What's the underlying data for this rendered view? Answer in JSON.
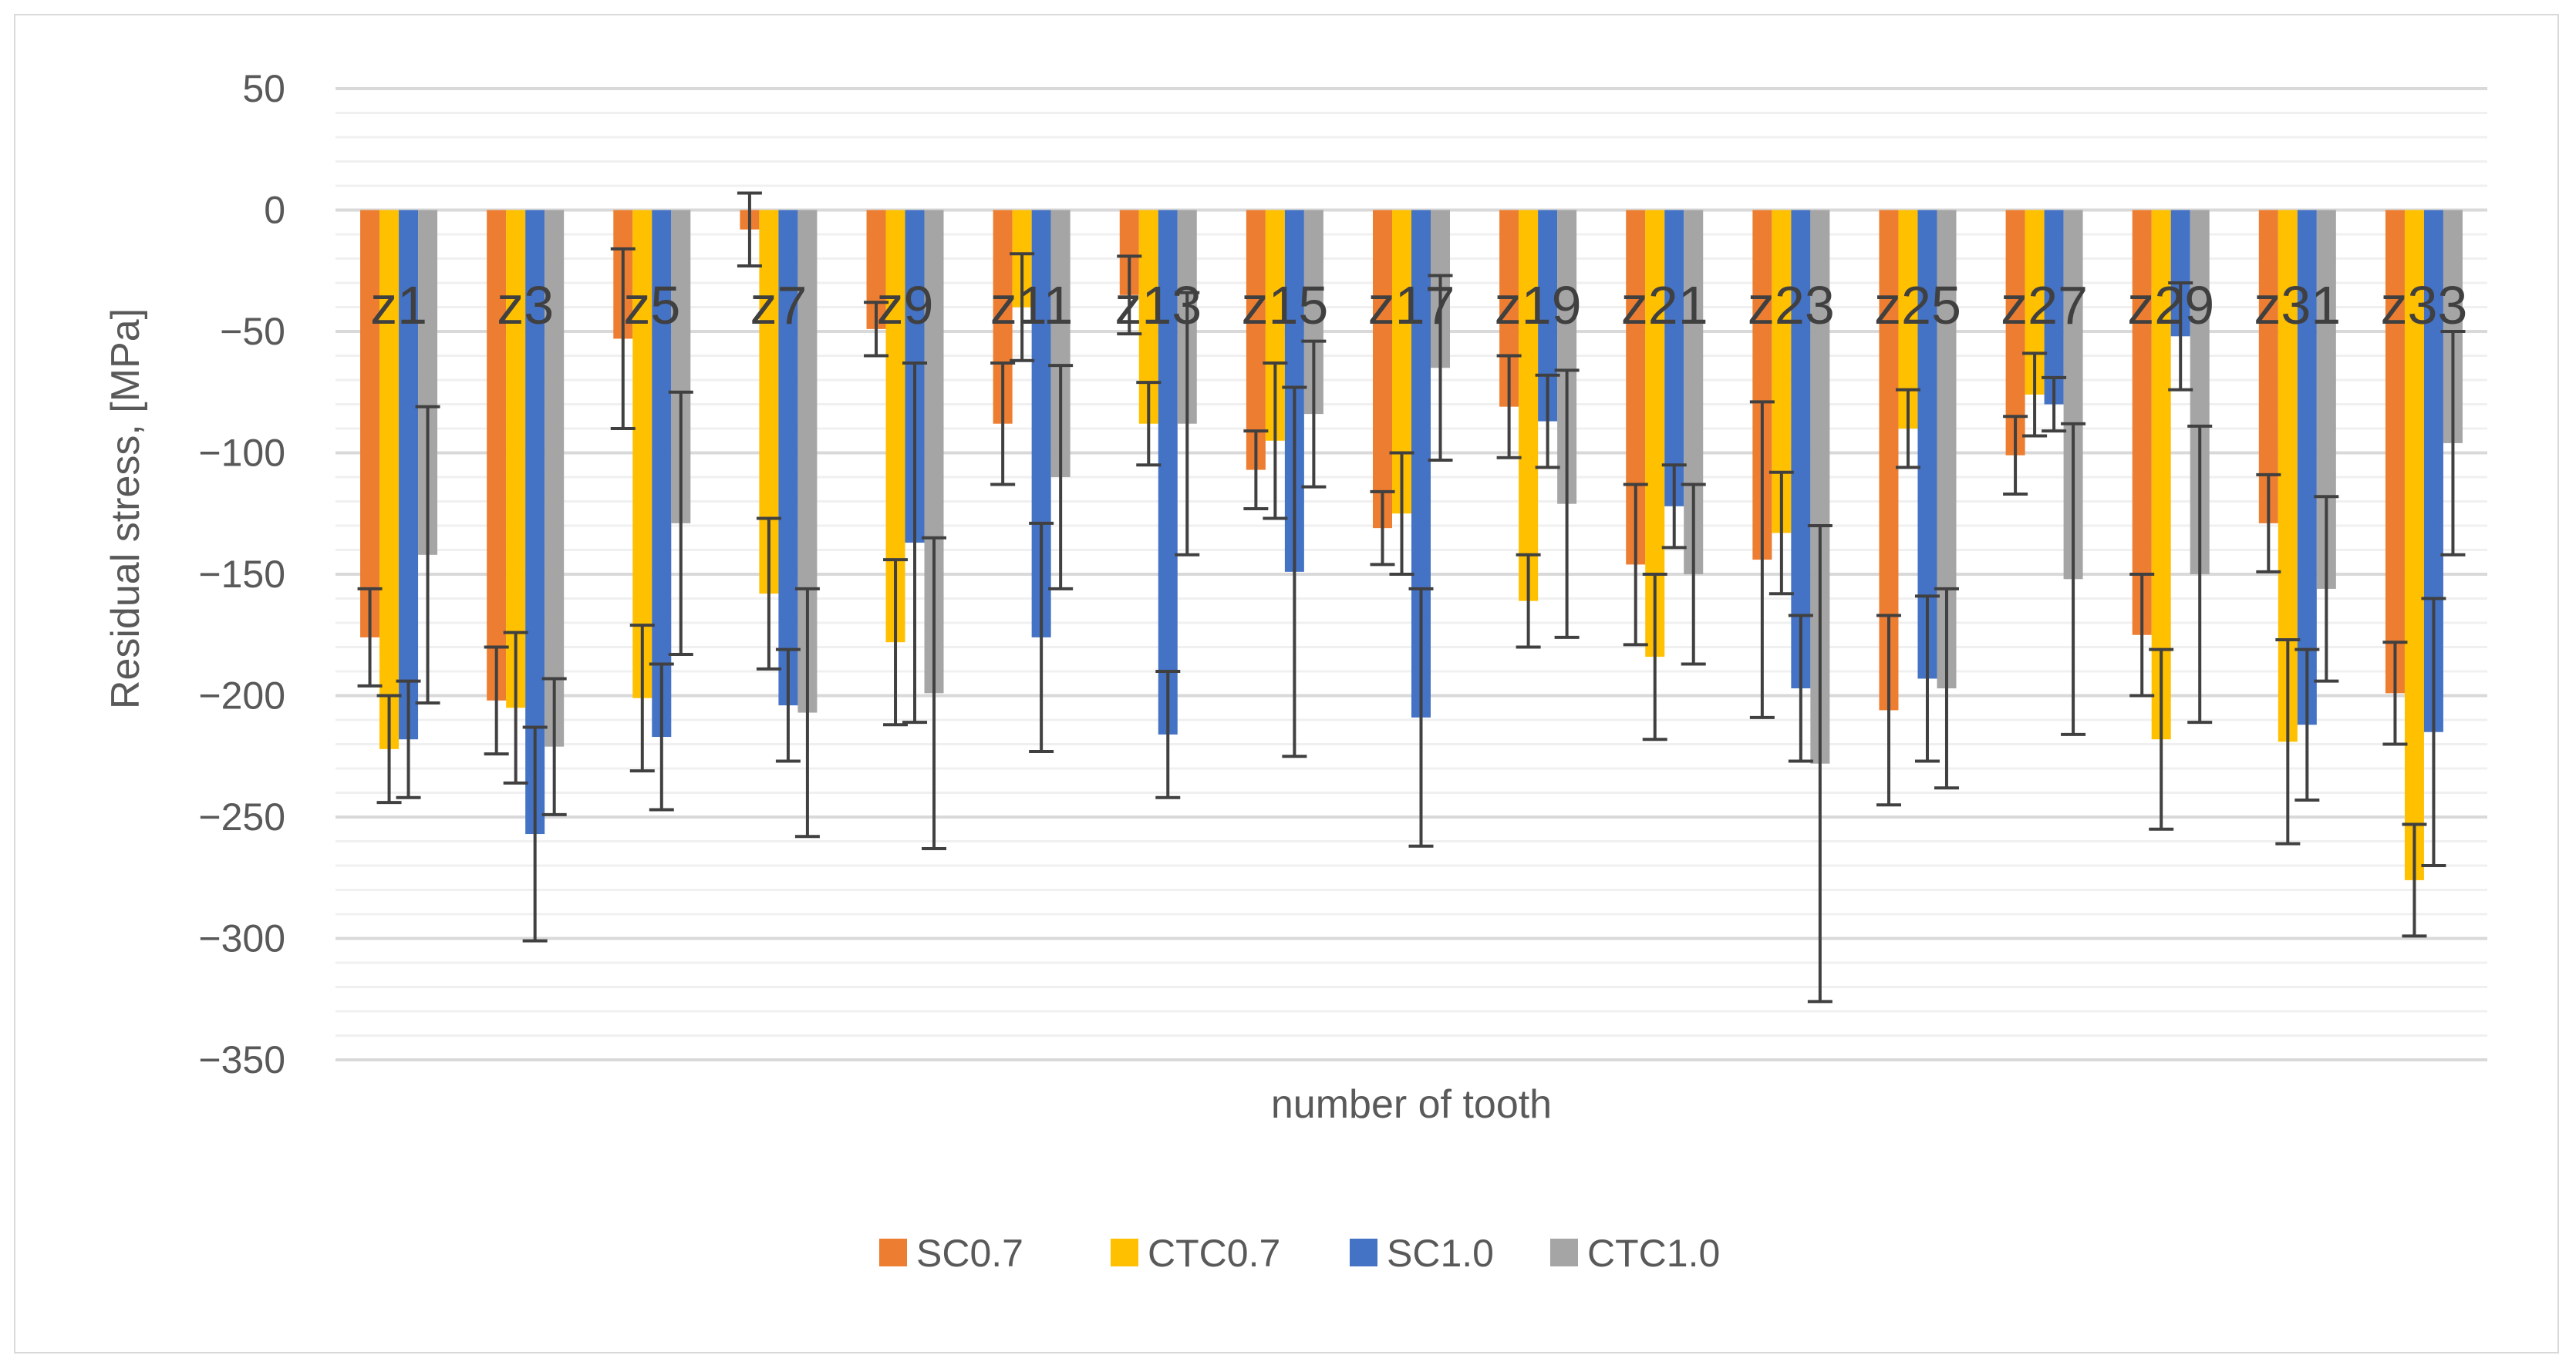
{
  "chart_data": {
    "type": "bar",
    "title": "",
    "xlabel": "number of tooth",
    "ylabel": "Residual stress, [MPa]",
    "ylim": [
      -350,
      50
    ],
    "yticks": [
      50,
      0,
      -50,
      -100,
      -150,
      -200,
      -250,
      -300,
      -350
    ],
    "ytick_labels": [
      "50",
      "0",
      "−50",
      "−100",
      "−150",
      "−200",
      "−250",
      "−300",
      "−350"
    ],
    "minor_grid_step": 10,
    "legend_position": "bottom",
    "categories": [
      "z1",
      "z3",
      "z5",
      "z7",
      "z9",
      "z11",
      "z13",
      "z15",
      "z17",
      "z19",
      "z21",
      "z23",
      "z25",
      "z27",
      "z29",
      "z31",
      "z33"
    ],
    "series": [
      {
        "name": "SC0.7",
        "color": "#ED7D31",
        "values": [
          -176,
          -202,
          -53,
          -8,
          -49,
          -88,
          -35,
          -107,
          -131,
          -81,
          -146,
          -144,
          -206,
          -101,
          -175,
          -129,
          -199
        ],
        "errors": [
          20,
          22,
          37,
          15,
          11,
          25,
          16,
          16,
          15,
          21,
          33,
          65,
          39,
          16,
          25,
          20,
          21
        ]
      },
      {
        "name": "CTC0.7",
        "color": "#FFC000",
        "values": [
          -222,
          -205,
          -201,
          -158,
          -178,
          -40,
          -88,
          -95,
          -125,
          -161,
          -184,
          -133,
          -90,
          -76,
          -218,
          -219,
          -276
        ],
        "errors": [
          22,
          31,
          30,
          31,
          34,
          22,
          17,
          32,
          25,
          19,
          34,
          25,
          16,
          17,
          37,
          42,
          23
        ]
      },
      {
        "name": "SC1.0",
        "color": "#4472C4",
        "values": [
          -218,
          -257,
          -217,
          -204,
          -137,
          -176,
          -216,
          -149,
          -209,
          -87,
          -122,
          -197,
          -193,
          -80,
          -52,
          -212,
          -215
        ],
        "errors": [
          24,
          44,
          30,
          23,
          74,
          47,
          26,
          76,
          53,
          19,
          17,
          30,
          34,
          11,
          22,
          31,
          55
        ]
      },
      {
        "name": "CTC1.0",
        "color": "#A5A5A5",
        "values": [
          -142,
          -221,
          -129,
          -207,
          -199,
          -110,
          -88,
          -84,
          -65,
          -121,
          -150,
          -228,
          -197,
          -152,
          -150,
          -156,
          -96
        ],
        "errors": [
          61,
          28,
          54,
          51,
          64,
          46,
          54,
          30,
          38,
          55,
          37,
          98,
          41,
          64,
          61,
          38,
          46
        ]
      }
    ]
  }
}
